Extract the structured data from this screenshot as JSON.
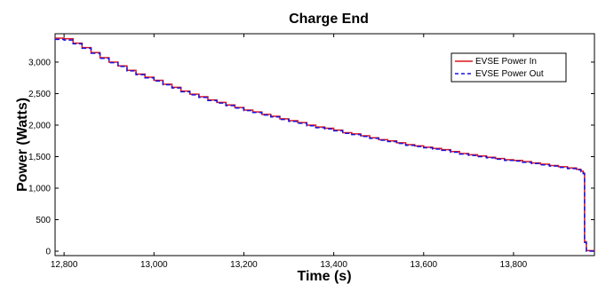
{
  "chart_data": {
    "type": "line",
    "title": "Charge End",
    "xlabel": "Time (s)",
    "ylabel": "Power (Watts)",
    "xlim": [
      12780,
      13980
    ],
    "ylim": [
      -70,
      3450
    ],
    "x_ticks": [
      12800,
      13000,
      13200,
      13400,
      13600,
      13800
    ],
    "x_tick_labels": [
      "12,800",
      "13,000",
      "13,200",
      "13,400",
      "13,600",
      "13,800"
    ],
    "y_ticks": [
      0,
      500,
      1000,
      1500,
      2000,
      2500,
      3000
    ],
    "y_tick_labels": [
      "0",
      "500",
      "1,000",
      "1,500",
      "2,000",
      "2,500",
      "3,000"
    ],
    "grid": false,
    "legend_position": "top-right",
    "colors": {
      "power_in": "#e0141c",
      "power_out": "#1414e6"
    },
    "series": [
      {
        "name": "EVSE Power In",
        "style": "solid",
        "x": [
          12780,
          12800,
          12820,
          12840,
          12860,
          12880,
          12900,
          12920,
          12940,
          12960,
          12980,
          13000,
          13020,
          13040,
          13060,
          13080,
          13100,
          13120,
          13140,
          13160,
          13180,
          13200,
          13220,
          13240,
          13260,
          13280,
          13300,
          13320,
          13340,
          13360,
          13380,
          13400,
          13420,
          13440,
          13460,
          13480,
          13500,
          13520,
          13540,
          13560,
          13580,
          13600,
          13620,
          13640,
          13660,
          13680,
          13700,
          13720,
          13740,
          13760,
          13780,
          13800,
          13820,
          13840,
          13860,
          13880,
          13900,
          13920,
          13940,
          13950,
          13955,
          13958,
          13962,
          13965,
          13980
        ],
        "values": [
          3380,
          3370,
          3300,
          3230,
          3150,
          3070,
          3000,
          2940,
          2870,
          2810,
          2760,
          2710,
          2650,
          2600,
          2540,
          2490,
          2450,
          2400,
          2360,
          2320,
          2280,
          2240,
          2210,
          2170,
          2140,
          2100,
          2070,
          2040,
          2000,
          1970,
          1950,
          1920,
          1880,
          1860,
          1830,
          1800,
          1770,
          1750,
          1720,
          1690,
          1670,
          1650,
          1630,
          1610,
          1580,
          1550,
          1530,
          1510,
          1490,
          1470,
          1450,
          1440,
          1420,
          1400,
          1380,
          1360,
          1340,
          1320,
          1300,
          1270,
          1240,
          150,
          10,
          10,
          10
        ]
      },
      {
        "name": "EVSE Power Out",
        "style": "dashed",
        "x": [
          12780,
          12800,
          12820,
          12840,
          12860,
          12880,
          12900,
          12920,
          12940,
          12960,
          12980,
          13000,
          13020,
          13040,
          13060,
          13080,
          13100,
          13120,
          13140,
          13160,
          13180,
          13200,
          13220,
          13240,
          13260,
          13280,
          13300,
          13320,
          13340,
          13360,
          13380,
          13400,
          13420,
          13440,
          13460,
          13480,
          13500,
          13520,
          13540,
          13560,
          13580,
          13600,
          13620,
          13640,
          13660,
          13680,
          13700,
          13720,
          13740,
          13760,
          13780,
          13800,
          13820,
          13840,
          13860,
          13880,
          13900,
          13920,
          13940,
          13950,
          13955,
          13958,
          13962,
          13965,
          13980
        ],
        "values": [
          3360,
          3350,
          3290,
          3220,
          3140,
          3060,
          2990,
          2930,
          2860,
          2800,
          2750,
          2700,
          2640,
          2590,
          2530,
          2480,
          2440,
          2390,
          2350,
          2310,
          2270,
          2230,
          2200,
          2160,
          2130,
          2090,
          2060,
          2030,
          1990,
          1960,
          1940,
          1910,
          1870,
          1850,
          1820,
          1790,
          1760,
          1740,
          1710,
          1680,
          1660,
          1640,
          1620,
          1600,
          1570,
          1540,
          1520,
          1500,
          1480,
          1460,
          1440,
          1430,
          1410,
          1390,
          1370,
          1350,
          1330,
          1310,
          1290,
          1260,
          1230,
          140,
          0,
          0,
          0
        ]
      }
    ]
  }
}
